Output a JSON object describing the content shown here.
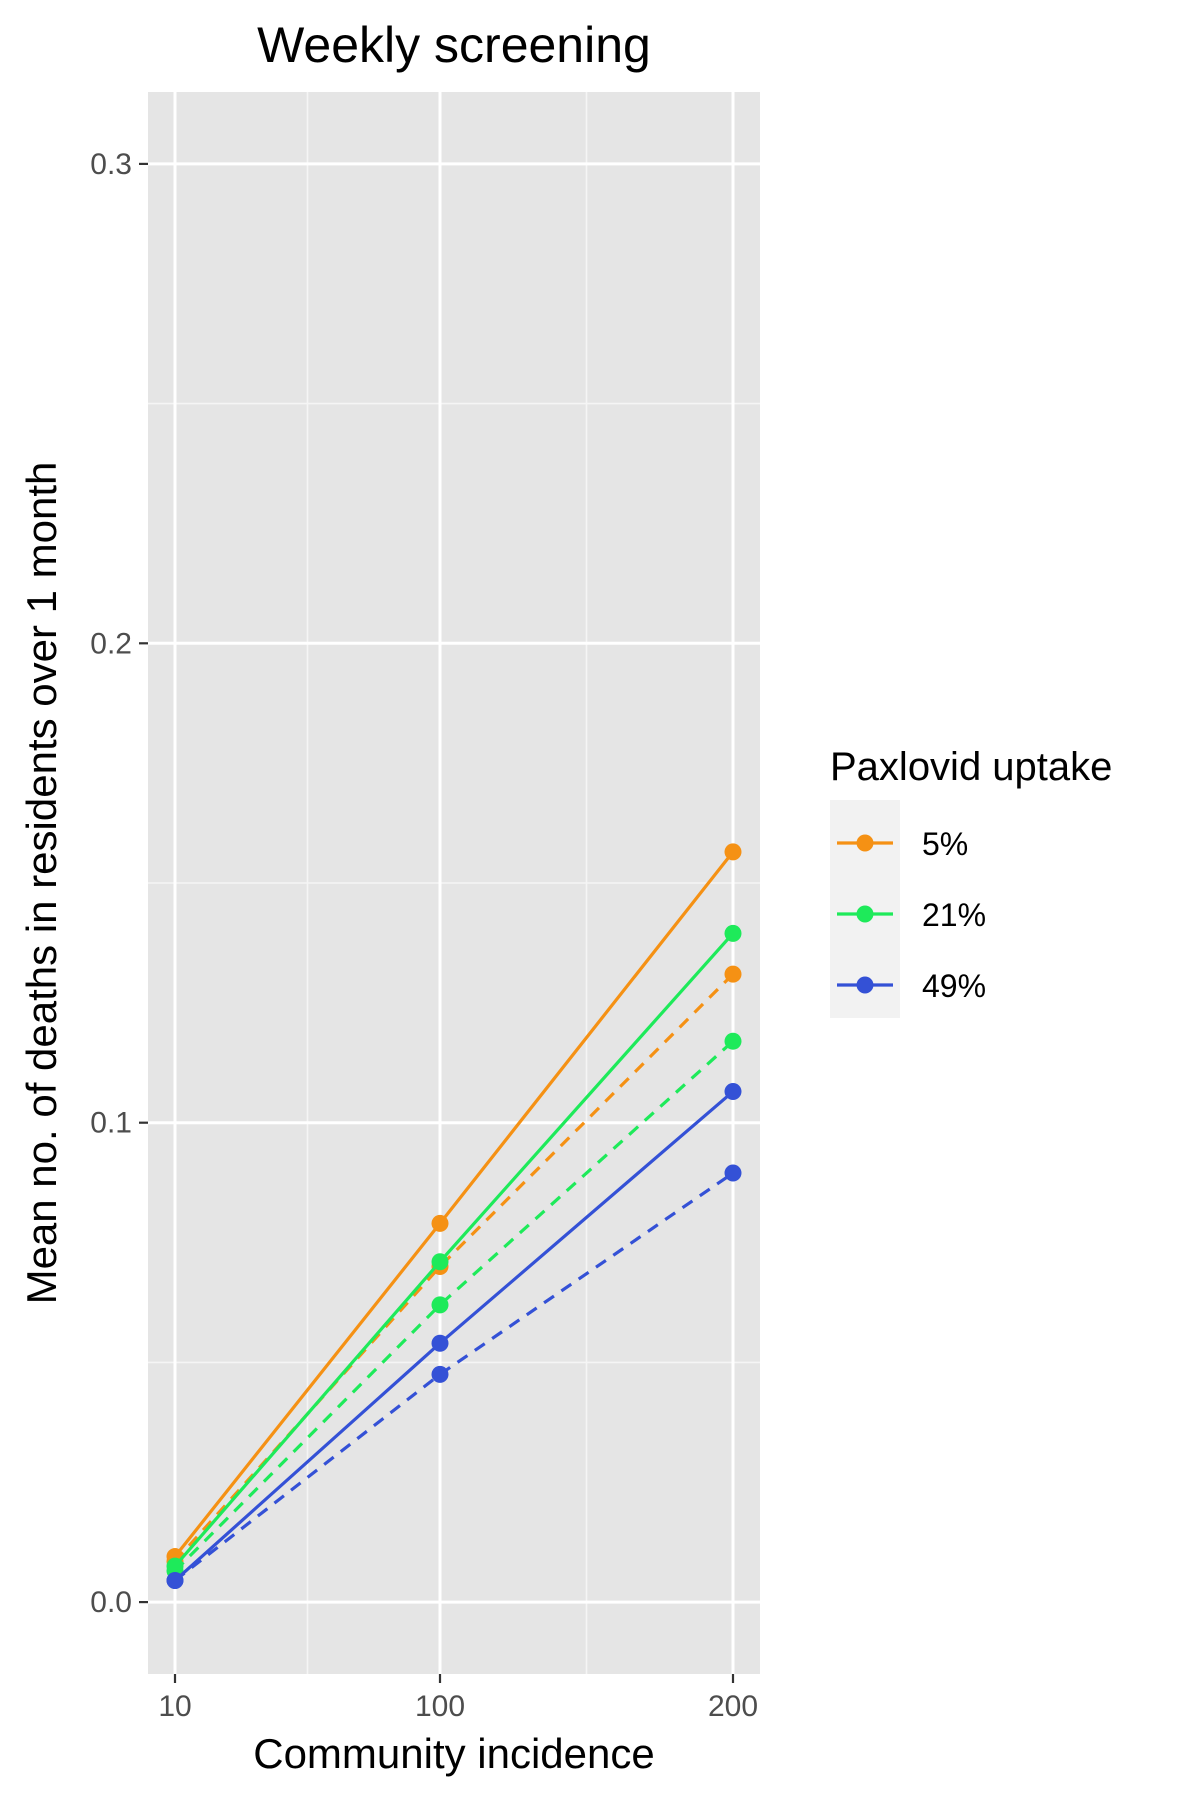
{
  "chart_data": {
    "type": "line",
    "title": "Weekly screening",
    "xlabel": "Community incidence",
    "ylabel": "Mean no. of deaths in residents over 1 month",
    "x_categories": [
      "10",
      "100",
      "200"
    ],
    "y_ticks": [
      "0.0",
      "0.1",
      "0.2",
      "0.3"
    ],
    "ylim": [
      -0.015,
      0.315
    ],
    "grid": true,
    "legend": {
      "title": "Paxlovid uptake",
      "placement": "right",
      "entries": [
        "5%",
        "21%",
        "49%"
      ]
    },
    "series": [
      {
        "name": "5%",
        "color": "#f59114",
        "linetype": "solid",
        "values": [
          0.0095,
          0.079,
          0.1565
        ]
      },
      {
        "name": "21%",
        "color": "#1eea5a",
        "linetype": "solid",
        "values": [
          0.0075,
          0.071,
          0.1395
        ]
      },
      {
        "name": "49%",
        "color": "#3451d6",
        "linetype": "solid",
        "values": [
          0.0045,
          0.054,
          0.1065
        ]
      },
      {
        "name": "5%",
        "color": "#f59114",
        "linetype": "dashed",
        "values": [
          0.0085,
          0.07,
          0.131
        ]
      },
      {
        "name": "21%",
        "color": "#1eea5a",
        "linetype": "dashed",
        "values": [
          0.0065,
          0.062,
          0.117
        ]
      },
      {
        "name": "49%",
        "color": "#3451d6",
        "linetype": "dashed",
        "values": [
          0.0045,
          0.0475,
          0.0895
        ]
      }
    ]
  }
}
